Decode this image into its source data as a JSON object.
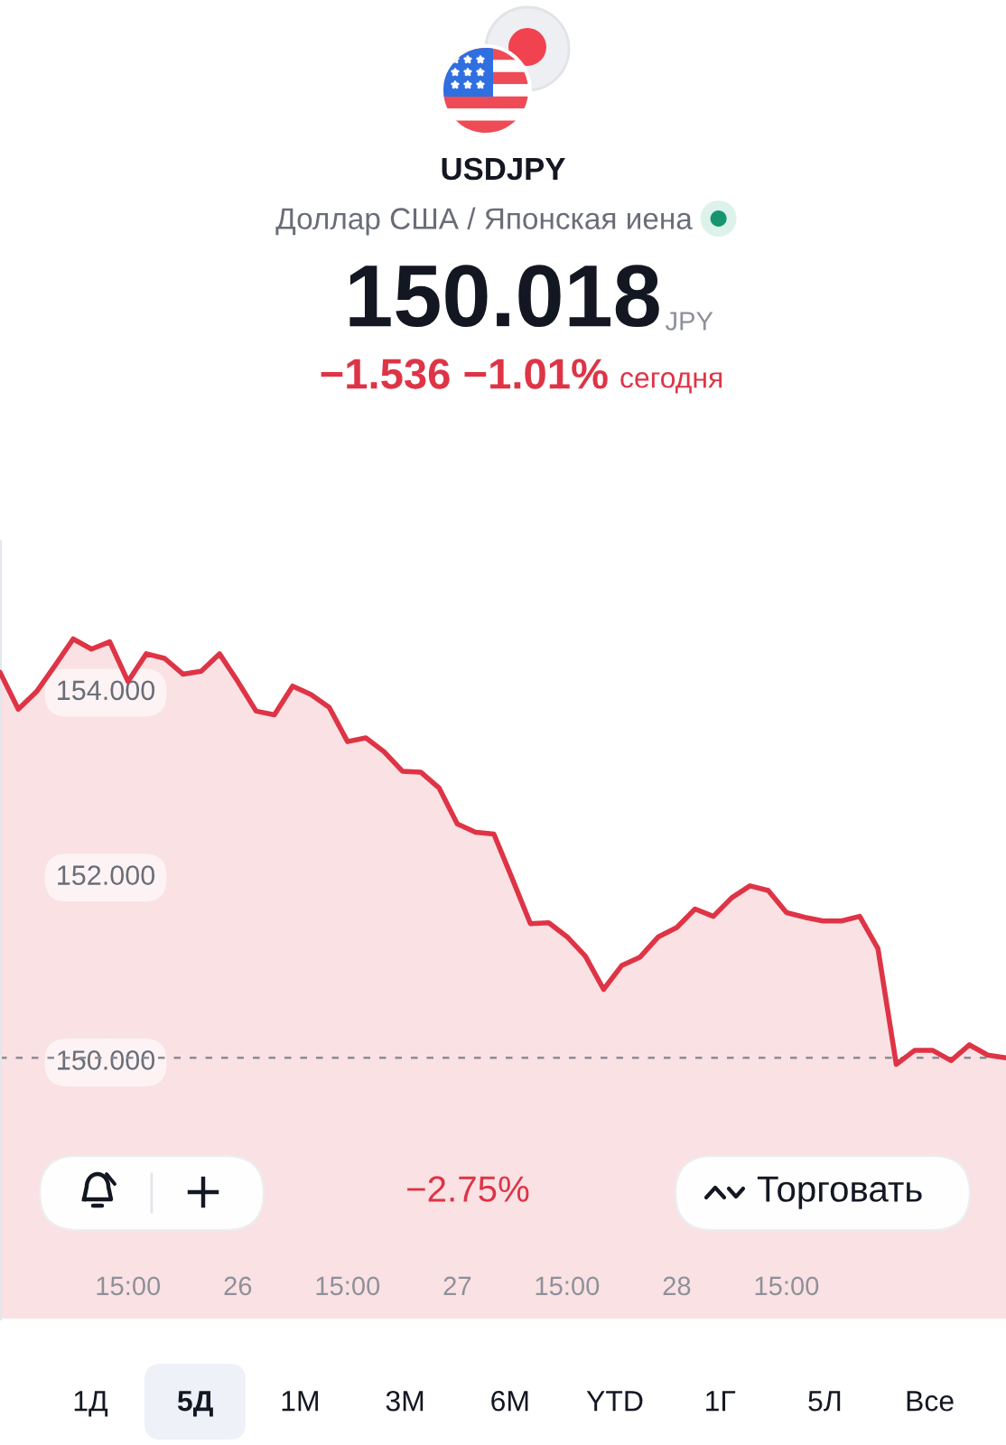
{
  "chart_data": {
    "type": "area",
    "title": "USDJPY",
    "subtitle": "Доллар США / Японская иена",
    "categories": [
      null,
      null,
      null,
      null,
      null,
      null,
      null,
      "15:00",
      null,
      null,
      null,
      null,
      null,
      "26",
      null,
      null,
      null,
      null,
      null,
      "15:00",
      null,
      null,
      null,
      null,
      null,
      "27",
      null,
      null,
      null,
      null,
      null,
      "15:00",
      null,
      null,
      null,
      null,
      null,
      "28",
      null,
      null,
      null,
      null,
      null,
      "15:00",
      null,
      null,
      null,
      null,
      null,
      null,
      null,
      null,
      null,
      null,
      null,
      null
    ],
    "series": [
      {
        "color": "#de3446",
        "values": [
          154.19,
          153.79,
          153.98,
          154.26,
          154.55,
          154.44,
          154.52,
          154.09,
          154.39,
          154.34,
          154.17,
          154.2,
          154.39,
          154.09,
          153.77,
          153.73,
          154.04,
          153.95,
          153.81,
          153.44,
          153.48,
          153.33,
          153.12,
          153.11,
          152.94,
          152.55,
          152.46,
          152.44,
          151.96,
          151.47,
          151.48,
          151.33,
          151.12,
          150.76,
          151.02,
          151.11,
          151.33,
          151.43,
          151.63,
          151.55,
          151.75,
          151.88,
          151.83,
          151.59,
          151.54,
          151.5,
          151.5,
          151.55,
          151.2,
          149.95,
          150.1,
          150.1,
          149.99,
          150.16,
          150.05,
          150.02
        ]
      }
    ],
    "ylim": [
      147.2,
      155.6
    ],
    "yticks": [
      {
        "value": 150,
        "label": "150.000"
      },
      {
        "value": 152,
        "label": "152.000"
      },
      {
        "value": 154,
        "label": "154.000"
      }
    ],
    "ref_lines": [
      {
        "axis": "y",
        "value": 150.02,
        "line_style": "dashed",
        "color": "#8a8d96"
      }
    ],
    "annotations": [
      "150.018",
      "JPY",
      "−1.536 −1.01%",
      "сегодня",
      "−2.75%",
      "Торговать",
      "1Д",
      "5Д",
      "1М",
      "3М",
      "6М",
      "YTD",
      "1Г",
      "5Л",
      "Все"
    ]
  }
}
